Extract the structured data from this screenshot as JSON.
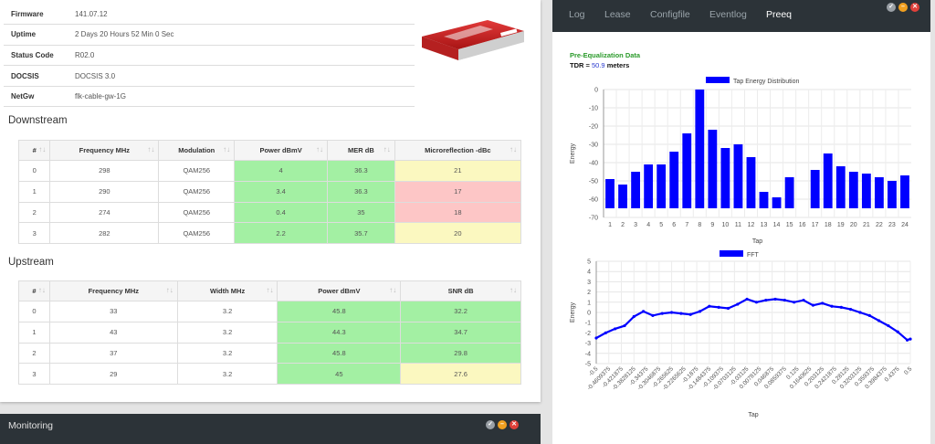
{
  "device_info": [
    {
      "key": "Firmware",
      "value": "141.07.12"
    },
    {
      "key": "Uptime",
      "value": "2 Days 20 Hours 52 Min 0 Sec"
    },
    {
      "key": "Status Code",
      "value": "R02.0"
    },
    {
      "key": "DOCSIS",
      "value": "DOCSIS 3.0"
    },
    {
      "key": "NetGw",
      "value": "flk-cable-gw-1G"
    }
  ],
  "downstream": {
    "title": "Downstream",
    "headers": [
      "#",
      "Frequency MHz",
      "Modulation",
      "Power dBmV",
      "MER dB",
      "Microreflection -dBc"
    ],
    "rows": [
      [
        "0",
        "298",
        "QAM256",
        "4",
        "36.3",
        "21"
      ],
      [
        "1",
        "290",
        "QAM256",
        "3.4",
        "36.3",
        "17"
      ],
      [
        "2",
        "274",
        "QAM256",
        "0.4",
        "35",
        "18"
      ],
      [
        "3",
        "282",
        "QAM256",
        "2.2",
        "35.7",
        "20"
      ]
    ],
    "cell_status": [
      [
        "",
        "",
        "",
        "green",
        "green",
        "yellow"
      ],
      [
        "",
        "",
        "",
        "green",
        "green",
        "red"
      ],
      [
        "",
        "",
        "",
        "green",
        "green",
        "red"
      ],
      [
        "",
        "",
        "",
        "green",
        "green",
        "yellow"
      ]
    ]
  },
  "upstream": {
    "title": "Upstream",
    "headers": [
      "#",
      "Frequency MHz",
      "Width MHz",
      "Power dBmV",
      "SNR dB"
    ],
    "rows": [
      [
        "0",
        "33",
        "3.2",
        "45.8",
        "32.2"
      ],
      [
        "1",
        "43",
        "3.2",
        "44.3",
        "34.7"
      ],
      [
        "2",
        "37",
        "3.2",
        "45.8",
        "29.8"
      ],
      [
        "3",
        "29",
        "3.2",
        "45",
        "27.6"
      ]
    ],
    "cell_status": [
      [
        "",
        "",
        "",
        "green",
        "green"
      ],
      [
        "",
        "",
        "",
        "green",
        "green"
      ],
      [
        "",
        "",
        "",
        "green",
        "green"
      ],
      [
        "",
        "",
        "",
        "green",
        "yellow"
      ]
    ]
  },
  "monitoring": {
    "title": "Monitoring"
  },
  "window_controls": {
    "check": "✓",
    "minimize": "–",
    "close": "✕"
  },
  "tabs": [
    "Log",
    "Lease",
    "Configfile",
    "Eventlog",
    "Preeq"
  ],
  "active_tab": "Preeq",
  "preeq": {
    "title": "Pre-Equalization Data",
    "tdr_label": "TDR =",
    "tdr_value": "50.9",
    "tdr_unit": "meters"
  },
  "colors": {
    "green": "#a3f0a3",
    "yellow": "#fbf8c0",
    "red": "#fdc6c6",
    "accent": "#2a9a2a",
    "bar": "#0000ff"
  },
  "chart_data": [
    {
      "type": "bar",
      "legend": "Tap Energy Distribution",
      "xlabel": "Tap",
      "ylabel": "Energy",
      "categories": [
        "1",
        "2",
        "3",
        "4",
        "5",
        "6",
        "7",
        "8",
        "9",
        "10",
        "11",
        "12",
        "13",
        "14",
        "15",
        "16",
        "17",
        "18",
        "19",
        "20",
        "21",
        "22",
        "23",
        "24"
      ],
      "values": [
        -49,
        -52,
        -45,
        -41,
        -41,
        -34,
        -24,
        0,
        -22,
        -32,
        -30,
        -37,
        -56,
        -59,
        -48,
        null,
        -44,
        -35,
        -42,
        -45,
        -46,
        -48,
        -50,
        -47
      ],
      "ylim": [
        -70,
        0
      ],
      "yticks": [
        "0",
        "-10",
        "-20",
        "-30",
        "-40",
        "-50",
        "-60",
        "-70"
      ]
    },
    {
      "type": "line",
      "legend": "FFT",
      "xlabel": "Tap",
      "ylabel": "Energy",
      "ylim": [
        -5,
        5
      ],
      "yticks": [
        "5",
        "4",
        "3",
        "2",
        "1",
        "0",
        "-1",
        "-2",
        "-3",
        "-4",
        "-5"
      ],
      "xticks": [
        "-0.5",
        "-0.4609375",
        "-0.421875",
        "-0.3828125",
        "-0.34375",
        "-0.3046875",
        "-0.265625",
        "-0.2265625",
        "-0.1875",
        "-0.1484375",
        "-0.109375",
        "-0.0703125",
        "-0.03125",
        "0.0078125",
        "0.046875",
        "0.0859375",
        "0.125",
        "0.1640625",
        "0.203125",
        "0.2421875",
        "0.28125",
        "0.3203125",
        "0.359375",
        "0.3984375",
        "0.4375",
        "0.5"
      ],
      "x": [
        -0.5,
        -0.47,
        -0.44,
        -0.41,
        -0.38,
        -0.35,
        -0.32,
        -0.29,
        -0.26,
        -0.23,
        -0.2,
        -0.17,
        -0.14,
        -0.11,
        -0.08,
        -0.05,
        -0.02,
        0.01,
        0.04,
        0.07,
        0.1,
        0.13,
        0.16,
        0.19,
        0.22,
        0.25,
        0.28,
        0.31,
        0.34,
        0.37,
        0.4,
        0.43,
        0.46,
        0.49,
        0.5
      ],
      "values": [
        -2.5,
        -2.0,
        -1.6,
        -1.3,
        -0.4,
        0.1,
        -0.3,
        -0.1,
        0.0,
        -0.1,
        -0.2,
        0.1,
        0.6,
        0.5,
        0.4,
        0.8,
        1.3,
        1.0,
        1.2,
        1.3,
        1.2,
        1.0,
        1.2,
        0.7,
        0.9,
        0.6,
        0.5,
        0.3,
        0.0,
        -0.3,
        -0.8,
        -1.3,
        -1.9,
        -2.7,
        -2.6
      ]
    }
  ]
}
